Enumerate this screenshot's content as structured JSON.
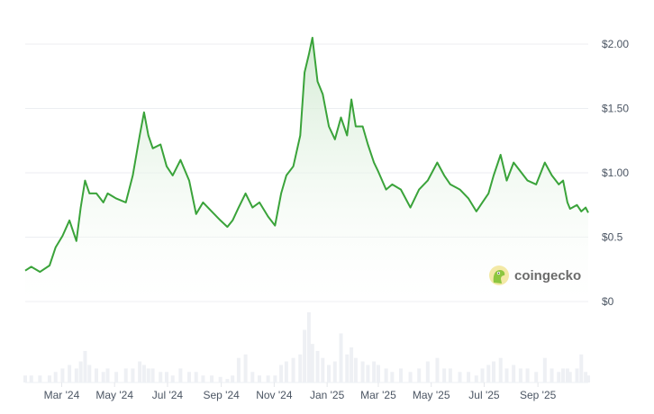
{
  "chart_data": {
    "type": "area",
    "title": "",
    "xlabel": "",
    "ylabel": "",
    "ylim": [
      0,
      2.0
    ],
    "y_ticks": [
      "$0",
      "$0.5",
      "$1.00",
      "$1.50",
      "$2.00"
    ],
    "y_tick_values": [
      0,
      0.5,
      1.0,
      1.5,
      2.0
    ],
    "x_ticks": [
      "Mar '24",
      "May '24",
      "Jul '24",
      "Sep '24",
      "Nov '24",
      "Jan '25",
      "Mar '25",
      "May '25",
      "Jul '25",
      "Sep '25"
    ],
    "x_tick_dates": [
      "2024-03-01",
      "2024-05-01",
      "2024-07-01",
      "2024-09-01",
      "2024-11-01",
      "2025-01-01",
      "2025-03-01",
      "2025-05-01",
      "2025-07-01",
      "2025-09-01"
    ],
    "xlim": [
      "2024-01-19",
      "2025-10-29"
    ],
    "grid": true,
    "line_color": "#3aa33a",
    "fill_color": "#e6f4e6",
    "volume_color": "#eef0f4",
    "series": [
      {
        "x": [
          "2024-01-19",
          "2024-01-26",
          "2024-02-05",
          "2024-02-16",
          "2024-02-23",
          "2024-03-02",
          "2024-03-10",
          "2024-03-18",
          "2024-03-23",
          "2024-03-28",
          "2024-04-02",
          "2024-04-10",
          "2024-04-18",
          "2024-04-23",
          "2024-05-03",
          "2024-05-14",
          "2024-05-22",
          "2024-05-30",
          "2024-06-04",
          "2024-06-09",
          "2024-06-14",
          "2024-06-23",
          "2024-06-30",
          "2024-07-07",
          "2024-07-16",
          "2024-07-26",
          "2024-08-03",
          "2024-08-11",
          "2024-08-21",
          "2024-08-31",
          "2024-09-08",
          "2024-09-14",
          "2024-09-21",
          "2024-09-29",
          "2024-10-07",
          "2024-10-15",
          "2024-10-25",
          "2024-11-02",
          "2024-11-09",
          "2024-11-15",
          "2024-11-23",
          "2024-12-01",
          "2024-12-06",
          "2024-12-11",
          "2024-12-15",
          "2024-12-21",
          "2024-12-27",
          "2025-01-03",
          "2025-01-10",
          "2025-01-17",
          "2025-01-24",
          "2025-01-29",
          "2025-02-03",
          "2025-02-11",
          "2025-02-17",
          "2025-02-24",
          "2025-03-01",
          "2025-03-10",
          "2025-03-17",
          "2025-03-27",
          "2025-04-07",
          "2025-04-17",
          "2025-04-27",
          "2025-05-08",
          "2025-05-16",
          "2025-05-23",
          "2025-06-03",
          "2025-06-13",
          "2025-06-22",
          "2025-06-29",
          "2025-07-06",
          "2025-07-12",
          "2025-07-20",
          "2025-07-27",
          "2025-08-04",
          "2025-08-12",
          "2025-08-20",
          "2025-08-30",
          "2025-09-09",
          "2025-09-17",
          "2025-09-25",
          "2025-09-30",
          "2025-10-05",
          "2025-10-08",
          "2025-10-16",
          "2025-10-21",
          "2025-10-26",
          "2025-10-29"
        ],
        "y": [
          0.24,
          0.27,
          0.23,
          0.28,
          0.42,
          0.51,
          0.63,
          0.47,
          0.73,
          0.94,
          0.84,
          0.84,
          0.77,
          0.84,
          0.8,
          0.77,
          0.98,
          1.29,
          1.47,
          1.29,
          1.19,
          1.22,
          1.05,
          0.98,
          1.1,
          0.94,
          0.68,
          0.77,
          0.7,
          0.63,
          0.58,
          0.63,
          0.73,
          0.84,
          0.73,
          0.77,
          0.66,
          0.59,
          0.84,
          0.98,
          1.05,
          1.29,
          1.78,
          1.92,
          2.05,
          1.71,
          1.61,
          1.36,
          1.26,
          1.43,
          1.29,
          1.57,
          1.36,
          1.36,
          1.22,
          1.08,
          1.01,
          0.87,
          0.91,
          0.87,
          0.73,
          0.87,
          0.94,
          1.08,
          0.98,
          0.91,
          0.87,
          0.8,
          0.7,
          0.77,
          0.84,
          0.98,
          1.14,
          0.94,
          1.08,
          1.01,
          0.94,
          0.91,
          1.08,
          0.98,
          0.91,
          0.94,
          0.77,
          0.72,
          0.75,
          0.7,
          0.73,
          0.69
        ],
        "volume": [
          0.1,
          0.1,
          0.1,
          0.1,
          0.15,
          0.2,
          0.25,
          0.2,
          0.3,
          0.45,
          0.25,
          0.2,
          0.15,
          0.2,
          0.15,
          0.2,
          0.2,
          0.3,
          0.25,
          0.2,
          0.2,
          0.15,
          0.15,
          0.1,
          0.2,
          0.15,
          0.15,
          0.1,
          0.1,
          0.08,
          0.05,
          0.1,
          0.35,
          0.4,
          0.15,
          0.1,
          0.1,
          0.1,
          0.25,
          0.3,
          0.35,
          0.4,
          0.75,
          1.0,
          0.55,
          0.45,
          0.35,
          0.25,
          0.3,
          0.7,
          0.4,
          0.5,
          0.35,
          0.3,
          0.25,
          0.3,
          0.25,
          0.2,
          0.15,
          0.2,
          0.15,
          0.2,
          0.3,
          0.35,
          0.2,
          0.2,
          0.15,
          0.15,
          0.1,
          0.2,
          0.25,
          0.3,
          0.35,
          0.2,
          0.25,
          0.2,
          0.2,
          0.15,
          0.35,
          0.2,
          0.15,
          0.2,
          0.2,
          0.15,
          0.2,
          0.4,
          0.15,
          0.1
        ]
      }
    ]
  },
  "watermark": {
    "text": "coingecko"
  }
}
